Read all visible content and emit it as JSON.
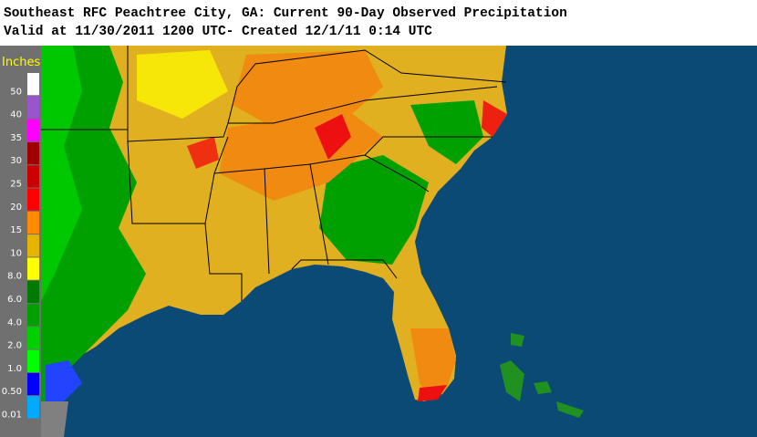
{
  "header": {
    "title": "Southeast RFC Peachtree City, GA: Current 90-Day Observed Precipitation",
    "subtitle": "Valid at 11/30/2011 1200 UTC- Created 12/1/11 0:14 UTC"
  },
  "legend": {
    "title": "Inches",
    "levels": [
      {
        "label": "50",
        "color": "#ffffff"
      },
      {
        "label": "40",
        "color": "#9955cc"
      },
      {
        "label": "35",
        "color": "#ff00ff"
      },
      {
        "label": "30",
        "color": "#a00000"
      },
      {
        "label": "25",
        "color": "#cc0000"
      },
      {
        "label": "20",
        "color": "#ff0000"
      },
      {
        "label": "15",
        "color": "#ff8c00"
      },
      {
        "label": "10",
        "color": "#e6b400"
      },
      {
        "label": "8.0",
        "color": "#ffff00"
      },
      {
        "label": "6.0",
        "color": "#007a00"
      },
      {
        "label": "4.0",
        "color": "#00a000"
      },
      {
        "label": "2.0",
        "color": "#00d000"
      },
      {
        "label": "1.0",
        "color": "#00ff00"
      },
      {
        "label": "0.50",
        "color": "#0000ff"
      },
      {
        "label": "0.01",
        "color": "#00aaff"
      }
    ]
  }
}
